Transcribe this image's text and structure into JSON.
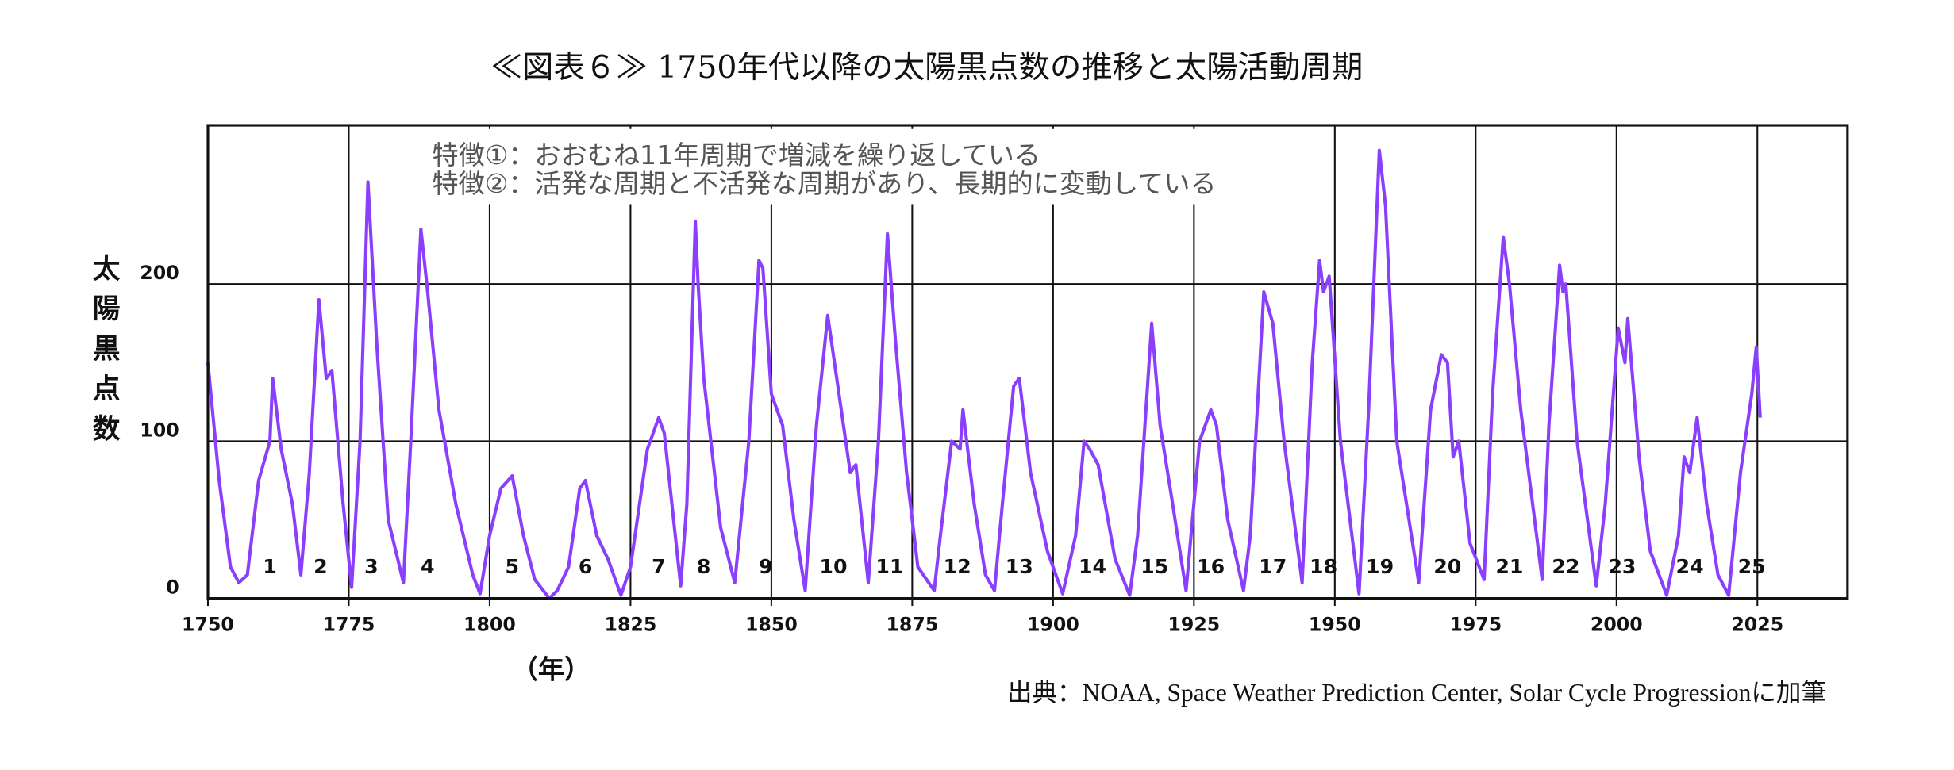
{
  "chart_data": {
    "type": "line",
    "title": "≪図表６≫ 1750年代以降の太陽黒点数の推移と太陽活動周期",
    "annotations": [
      "特徴①：おおむね11年周期で増減を繰り返している",
      "特徴②：活発な周期と不活発な周期があり、長期的に変動している"
    ],
    "y_label": "太陽黒点数",
    "x_label": "（年）",
    "source": "出典：NOAA, Space Weather Prediction Center, Solar Cycle Progressionに加筆",
    "color": "#8a3ffc",
    "grid": true,
    "xlim": [
      1750,
      2041
    ],
    "ylim": [
      0,
      301
    ],
    "xticks": [
      1750,
      1775,
      1800,
      1825,
      1850,
      1875,
      1900,
      1925,
      1950,
      1975,
      2000,
      2025
    ],
    "yticks": [
      0,
      100,
      200
    ],
    "cycle_labels": [
      {
        "label": "1",
        "x": 1761
      },
      {
        "label": "2",
        "x": 1770
      },
      {
        "label": "3",
        "x": 1779
      },
      {
        "label": "4",
        "x": 1789
      },
      {
        "label": "5",
        "x": 1804
      },
      {
        "label": "6",
        "x": 1817
      },
      {
        "label": "7",
        "x": 1830
      },
      {
        "label": "8",
        "x": 1838
      },
      {
        "label": "9",
        "x": 1849
      },
      {
        "label": "10",
        "x": 1861
      },
      {
        "label": "11",
        "x": 1871
      },
      {
        "label": "12",
        "x": 1883
      },
      {
        "label": "13",
        "x": 1894
      },
      {
        "label": "14",
        "x": 1907
      },
      {
        "label": "15",
        "x": 1918
      },
      {
        "label": "16",
        "x": 1928
      },
      {
        "label": "17",
        "x": 1939
      },
      {
        "label": "18",
        "x": 1948
      },
      {
        "label": "19",
        "x": 1958
      },
      {
        "label": "20",
        "x": 1970
      },
      {
        "label": "21",
        "x": 1981
      },
      {
        "label": "22",
        "x": 1991
      },
      {
        "label": "23",
        "x": 2001
      },
      {
        "label": "24",
        "x": 2013
      },
      {
        "label": "25",
        "x": 2024
      }
    ],
    "x": [
      1750,
      1752,
      1754,
      1755.5,
      1757,
      1759,
      1761,
      1761.5,
      1763,
      1765,
      1766.5,
      1768,
      1769.7,
      1771,
      1772,
      1774,
      1775.5,
      1777,
      1778.4,
      1780,
      1782,
      1784.7,
      1786,
      1787.8,
      1789,
      1791,
      1794,
      1797,
      1798.3,
      1800,
      1802,
      1804,
      1806,
      1808,
      1810.6,
      1812,
      1814,
      1816,
      1817,
      1819,
      1821,
      1823.3,
      1825,
      1828,
      1830,
      1831,
      1833.9,
      1835,
      1836.5,
      1837,
      1838,
      1841,
      1843.5,
      1846,
      1847.8,
      1848.5,
      1850,
      1852,
      1854,
      1856,
      1858,
      1860,
      1862,
      1864,
      1865,
      1867.2,
      1869,
      1870.6,
      1872,
      1874,
      1876,
      1878.9,
      1880,
      1882,
      1883.5,
      1884,
      1886,
      1888,
      1889.6,
      1891,
      1893,
      1894,
      1896,
      1899,
      1901.7,
      1904,
      1905.5,
      1906.5,
      1908,
      1911,
      1913.6,
      1915,
      1917.5,
      1919,
      1921,
      1923.6,
      1926,
      1928,
      1929,
      1931,
      1933.8,
      1935,
      1937.4,
      1939,
      1941,
      1944.2,
      1946,
      1947.3,
      1948,
      1949,
      1951,
      1954.3,
      1956,
      1957.9,
      1959,
      1961,
      1964.9,
      1967,
      1968.9,
      1970,
      1971,
      1972,
      1974,
      1976.5,
      1978,
      1979.9,
      1981,
      1983,
      1986.8,
      1988,
      1989.9,
      1990.5,
      1991,
      1993,
      1996.4,
      1998,
      2000.3,
      2001.5,
      2002,
      2004,
      2006,
      2008.9,
      2011,
      2012,
      2013,
      2014.3,
      2016,
      2018,
      2019.9,
      2022,
      2024,
      2024.8,
      2025.5
    ],
    "values": [
      150,
      75,
      20,
      10,
      15,
      75,
      100,
      140,
      95,
      60,
      15,
      80,
      190,
      140,
      145,
      60,
      7,
      100,
      265,
      160,
      50,
      10,
      100,
      235,
      195,
      120,
      60,
      15,
      3,
      40,
      70,
      78,
      40,
      12,
      0,
      5,
      20,
      70,
      75,
      40,
      25,
      2,
      20,
      95,
      115,
      105,
      8,
      60,
      240,
      200,
      140,
      45,
      10,
      100,
      215,
      210,
      130,
      110,
      50,
      5,
      110,
      180,
      130,
      80,
      85,
      10,
      100,
      232,
      165,
      80,
      20,
      5,
      40,
      100,
      95,
      120,
      60,
      15,
      5,
      60,
      135,
      140,
      80,
      30,
      3,
      40,
      100,
      95,
      85,
      25,
      2,
      40,
      175,
      110,
      65,
      5,
      100,
      120,
      110,
      50,
      5,
      40,
      195,
      175,
      100,
      10,
      150,
      215,
      195,
      205,
      100,
      3,
      120,
      285,
      250,
      100,
      10,
      120,
      155,
      150,
      90,
      100,
      35,
      12,
      130,
      230,
      200,
      120,
      12,
      110,
      212,
      195,
      200,
      100,
      8,
      60,
      172,
      150,
      178,
      90,
      30,
      2,
      40,
      90,
      80,
      115,
      60,
      15,
      2,
      80,
      130,
      160,
      115
    ]
  }
}
